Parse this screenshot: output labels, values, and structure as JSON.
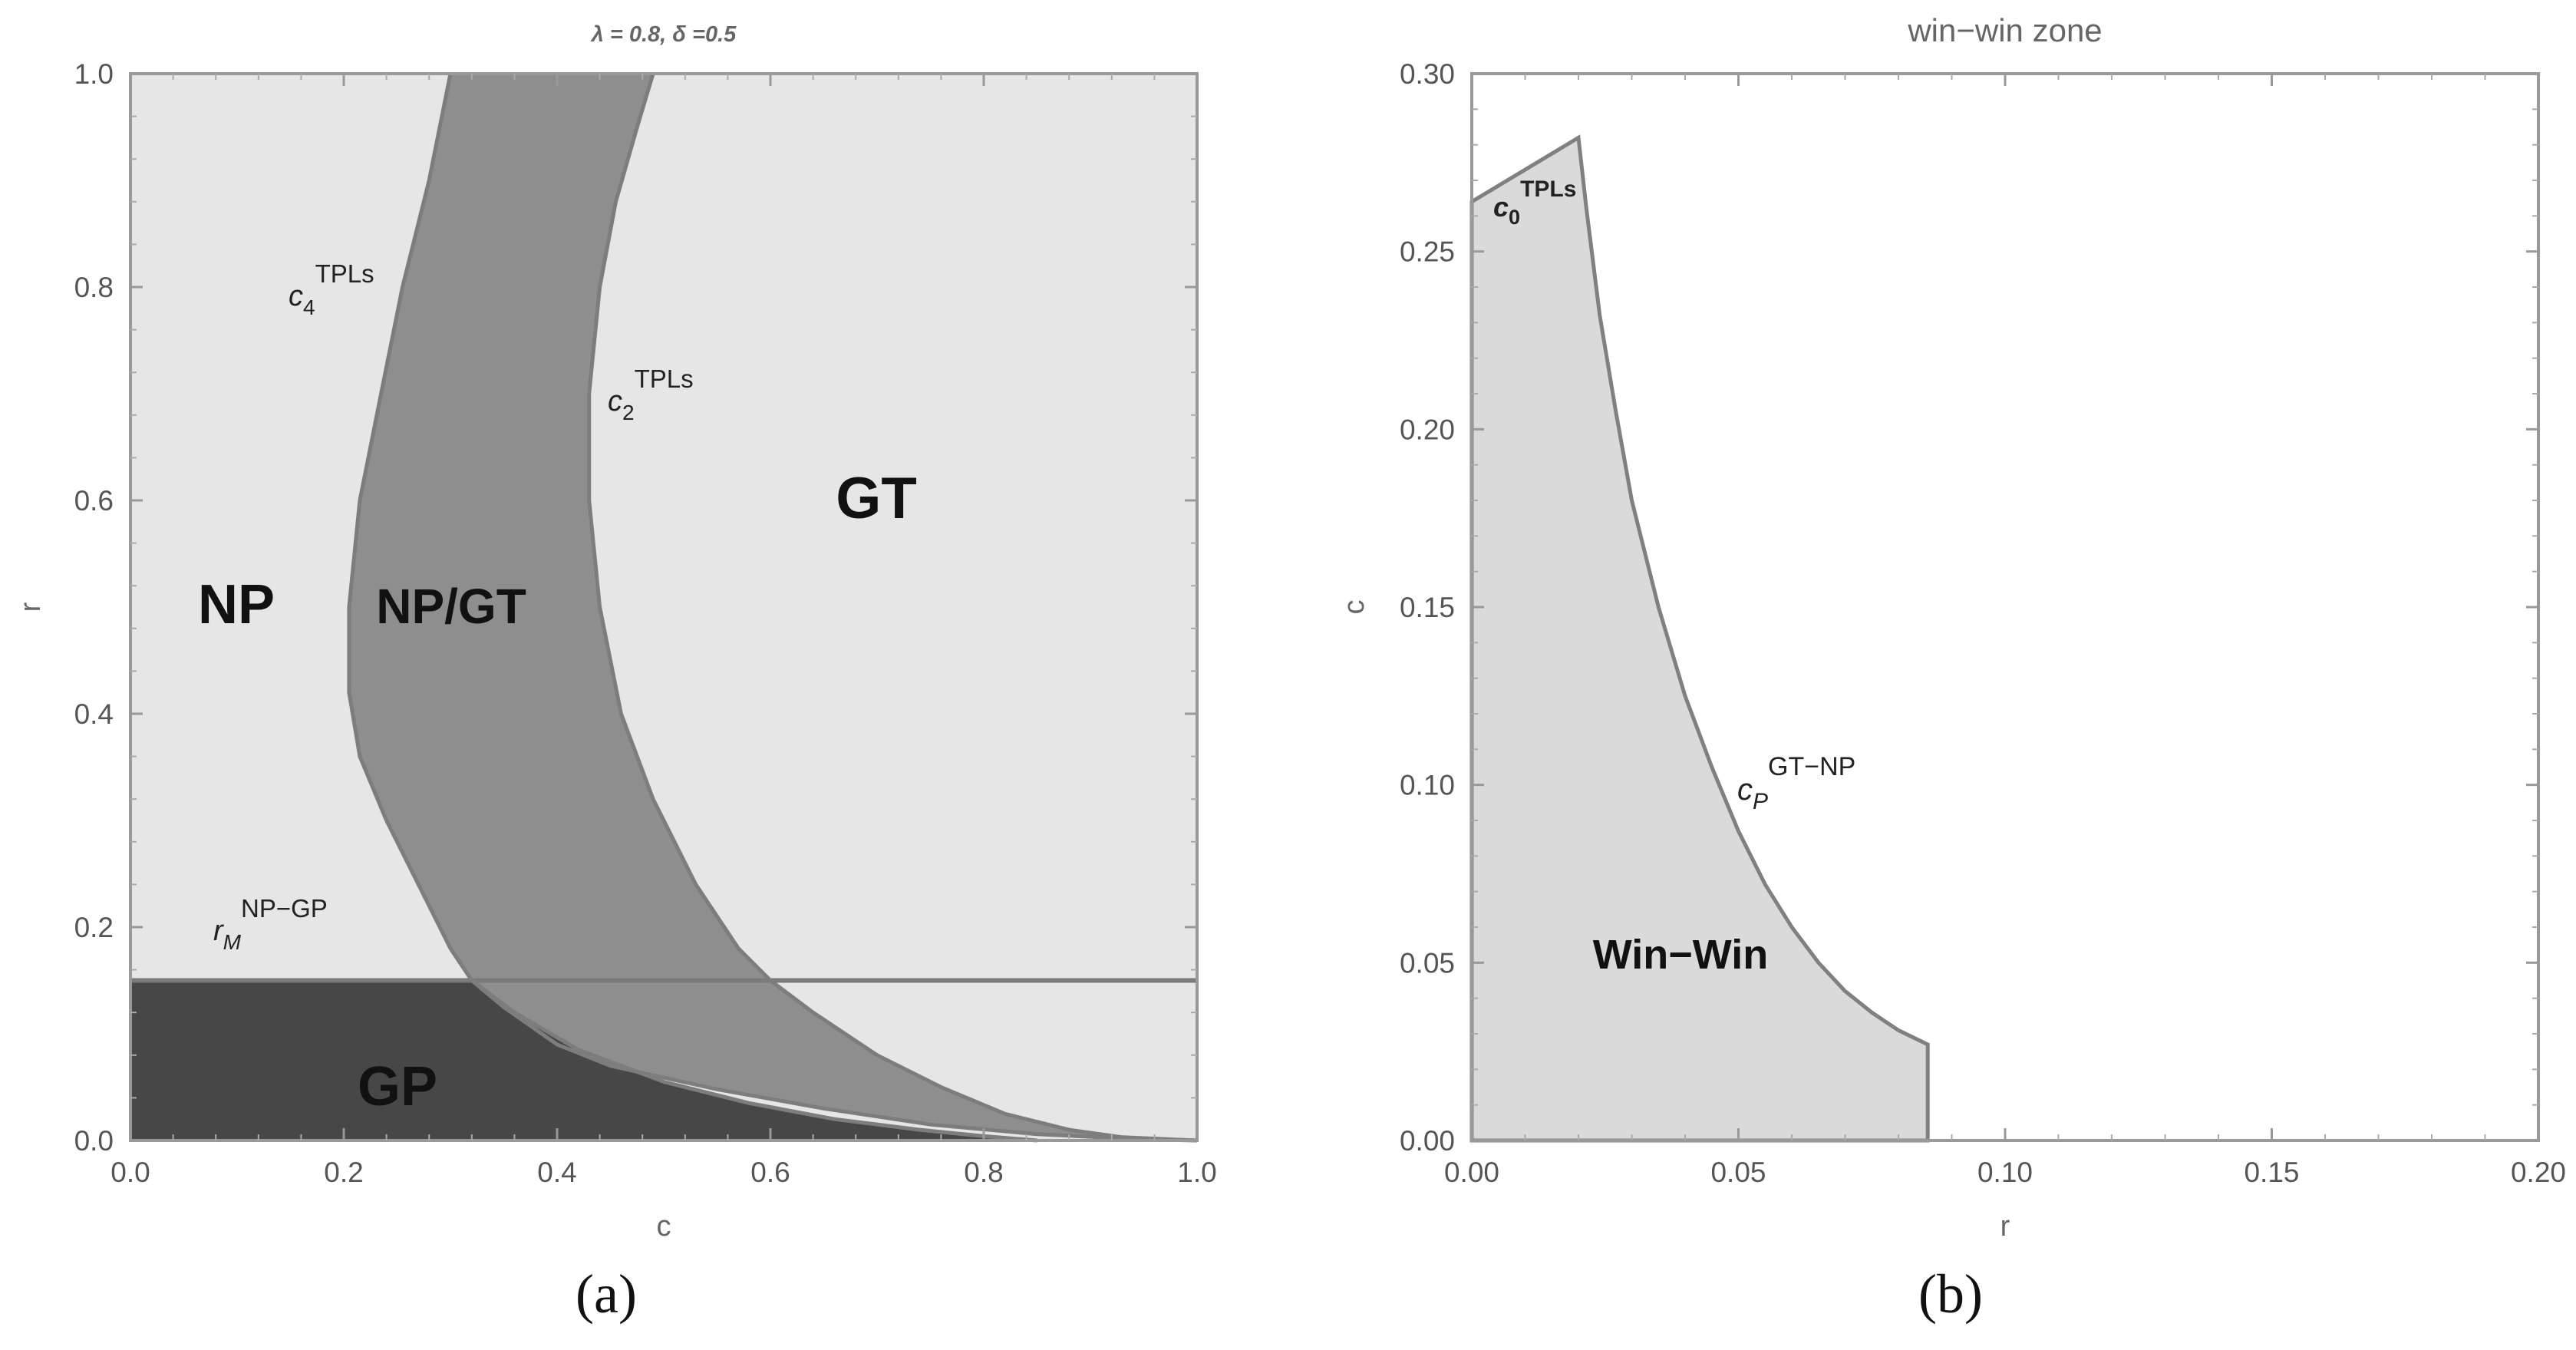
{
  "chart_data": [
    {
      "type": "area",
      "panel_label": "(a)",
      "title": "λ = 0.8, δ =0.5",
      "xlabel": "c",
      "ylabel": "r",
      "xlim": [
        0,
        1
      ],
      "ylim": [
        0,
        1
      ],
      "xticks": [
        "0.0",
        "0.2",
        "0.4",
        "0.6",
        "0.8",
        "1.0"
      ],
      "yticks": [
        "0.0",
        "0.2",
        "0.4",
        "0.6",
        "0.8",
        "1.0"
      ],
      "region_labels": {
        "np": "NP",
        "npgt": "NP/GT",
        "gt": "GT",
        "gp": "GP"
      },
      "curve_labels": {
        "c4": {
          "base": "c",
          "sub": "4",
          "sup": "TPLs"
        },
        "c2": {
          "base": "c",
          "sub": "2",
          "sup": "TPLs"
        },
        "rm": {
          "base": "r",
          "sub": "M",
          "sup": "NP−GP"
        }
      },
      "threshold_r": 0.15,
      "series": [
        {
          "name": "c4_TPLs",
          "points": [
            [
              0.3,
              1.0
            ],
            [
              0.28,
              0.9
            ],
            [
              0.255,
              0.8
            ],
            [
              0.235,
              0.7
            ],
            [
              0.215,
              0.6
            ],
            [
              0.205,
              0.5
            ],
            [
              0.205,
              0.42
            ],
            [
              0.215,
              0.36
            ],
            [
              0.24,
              0.3
            ],
            [
              0.27,
              0.24
            ],
            [
              0.3,
              0.18
            ],
            [
              0.32,
              0.15
            ],
            [
              0.35,
              0.125
            ],
            [
              0.4,
              0.09
            ],
            [
              0.45,
              0.07
            ],
            [
              0.55,
              0.048
            ],
            [
              0.65,
              0.03
            ],
            [
              0.75,
              0.015
            ],
            [
              0.85,
              0.006
            ],
            [
              0.95,
              0.001
            ],
            [
              1.0,
              0.0
            ]
          ]
        },
        {
          "name": "c2_TPLs",
          "points": [
            [
              0.49,
              1.0
            ],
            [
              0.475,
              0.95
            ],
            [
              0.455,
              0.88
            ],
            [
              0.44,
              0.8
            ],
            [
              0.43,
              0.7
            ],
            [
              0.43,
              0.6
            ],
            [
              0.44,
              0.5
            ],
            [
              0.46,
              0.4
            ],
            [
              0.49,
              0.32
            ],
            [
              0.53,
              0.24
            ],
            [
              0.57,
              0.18
            ],
            [
              0.6,
              0.15
            ],
            [
              0.64,
              0.12
            ],
            [
              0.7,
              0.08
            ],
            [
              0.76,
              0.05
            ],
            [
              0.82,
              0.025
            ],
            [
              0.88,
              0.01
            ],
            [
              0.93,
              0.003
            ],
            [
              1.0,
              0.0
            ]
          ]
        },
        {
          "name": "gp_boundary",
          "points": [
            [
              0.32,
              0.15
            ],
            [
              0.36,
              0.12
            ],
            [
              0.42,
              0.085
            ],
            [
              0.5,
              0.055
            ],
            [
              0.58,
              0.035
            ],
            [
              0.66,
              0.02
            ],
            [
              0.74,
              0.01
            ],
            [
              0.8,
              0.004
            ],
            [
              0.85,
              0.0
            ]
          ]
        }
      ]
    },
    {
      "type": "area",
      "panel_label": "(b)",
      "title": "win−win zone",
      "xlabel": "r",
      "ylabel": "c",
      "xlim": [
        0,
        0.2
      ],
      "ylim": [
        0,
        0.3
      ],
      "xticks": [
        "0.00",
        "0.05",
        "0.10",
        "0.15",
        "0.20"
      ],
      "yticks": [
        "0.00",
        "0.05",
        "0.10",
        "0.15",
        "0.20",
        "0.25",
        "0.30"
      ],
      "region_labels": {
        "winwin": "Win−Win"
      },
      "curve_labels": {
        "c0": {
          "base": "c",
          "sub": "0",
          "sup": "TPLs"
        },
        "cp": {
          "base": "c",
          "sub": "P",
          "sup": "GT−NP"
        }
      },
      "series": [
        {
          "name": "winwin_region",
          "points": [
            [
              0,
              0
            ],
            [
              0,
              0.264
            ],
            [
              0.02,
              0.282
            ],
            [
              0.0215,
              0.262
            ],
            [
              0.024,
              0.232
            ],
            [
              0.027,
              0.205
            ],
            [
              0.03,
              0.18
            ],
            [
              0.035,
              0.15
            ],
            [
              0.04,
              0.125
            ],
            [
              0.045,
              0.105
            ],
            [
              0.05,
              0.087
            ],
            [
              0.055,
              0.072
            ],
            [
              0.06,
              0.06
            ],
            [
              0.065,
              0.05
            ],
            [
              0.07,
              0.042
            ],
            [
              0.075,
              0.036
            ],
            [
              0.08,
              0.031
            ],
            [
              0.0855,
              0.027
            ],
            [
              0.0855,
              0
            ]
          ]
        }
      ]
    }
  ]
}
